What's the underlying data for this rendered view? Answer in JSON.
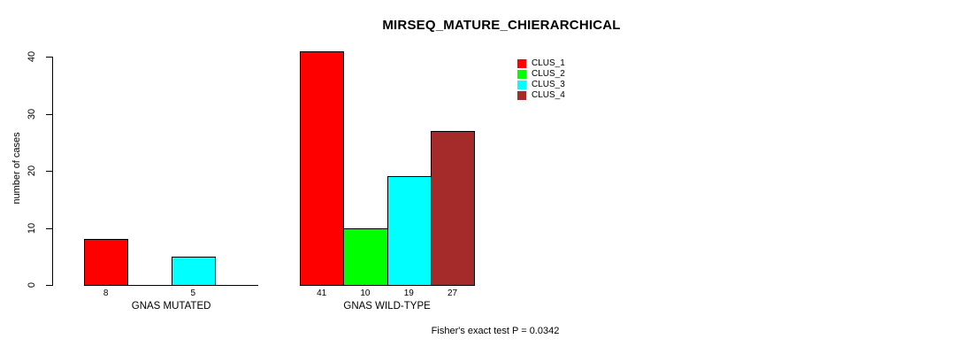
{
  "chart_data": {
    "type": "bar",
    "title": "MIRSEQ_MATURE_CHIERARCHICAL",
    "ylabel": "number of cases",
    "xlabel": "",
    "ylim": [
      0,
      41
    ],
    "yticks": [
      0,
      10,
      20,
      30,
      40
    ],
    "grid": false,
    "legend_position": "top-right",
    "categories": [
      "GNAS MUTATED",
      "GNAS WILD-TYPE"
    ],
    "series": [
      {
        "name": "CLUS_1",
        "color": "#FF0000",
        "values": [
          8,
          41
        ]
      },
      {
        "name": "CLUS_2",
        "color": "#00FF00",
        "values": [
          0,
          10
        ]
      },
      {
        "name": "CLUS_3",
        "color": "#00FFFF",
        "values": [
          5,
          19
        ]
      },
      {
        "name": "CLUS_4",
        "color": "#A52A2A",
        "values": [
          0,
          27
        ]
      }
    ],
    "bar_value_labels": {
      "GNAS MUTATED": [
        8,
        null,
        5,
        null
      ],
      "GNAS WILD-TYPE": [
        41,
        10,
        19,
        27
      ]
    },
    "annotation": "Fisher's exact test P = 0.0342"
  },
  "colors": {
    "axis": "#000000",
    "text": "#000000",
    "background": "#FFFFFF"
  }
}
